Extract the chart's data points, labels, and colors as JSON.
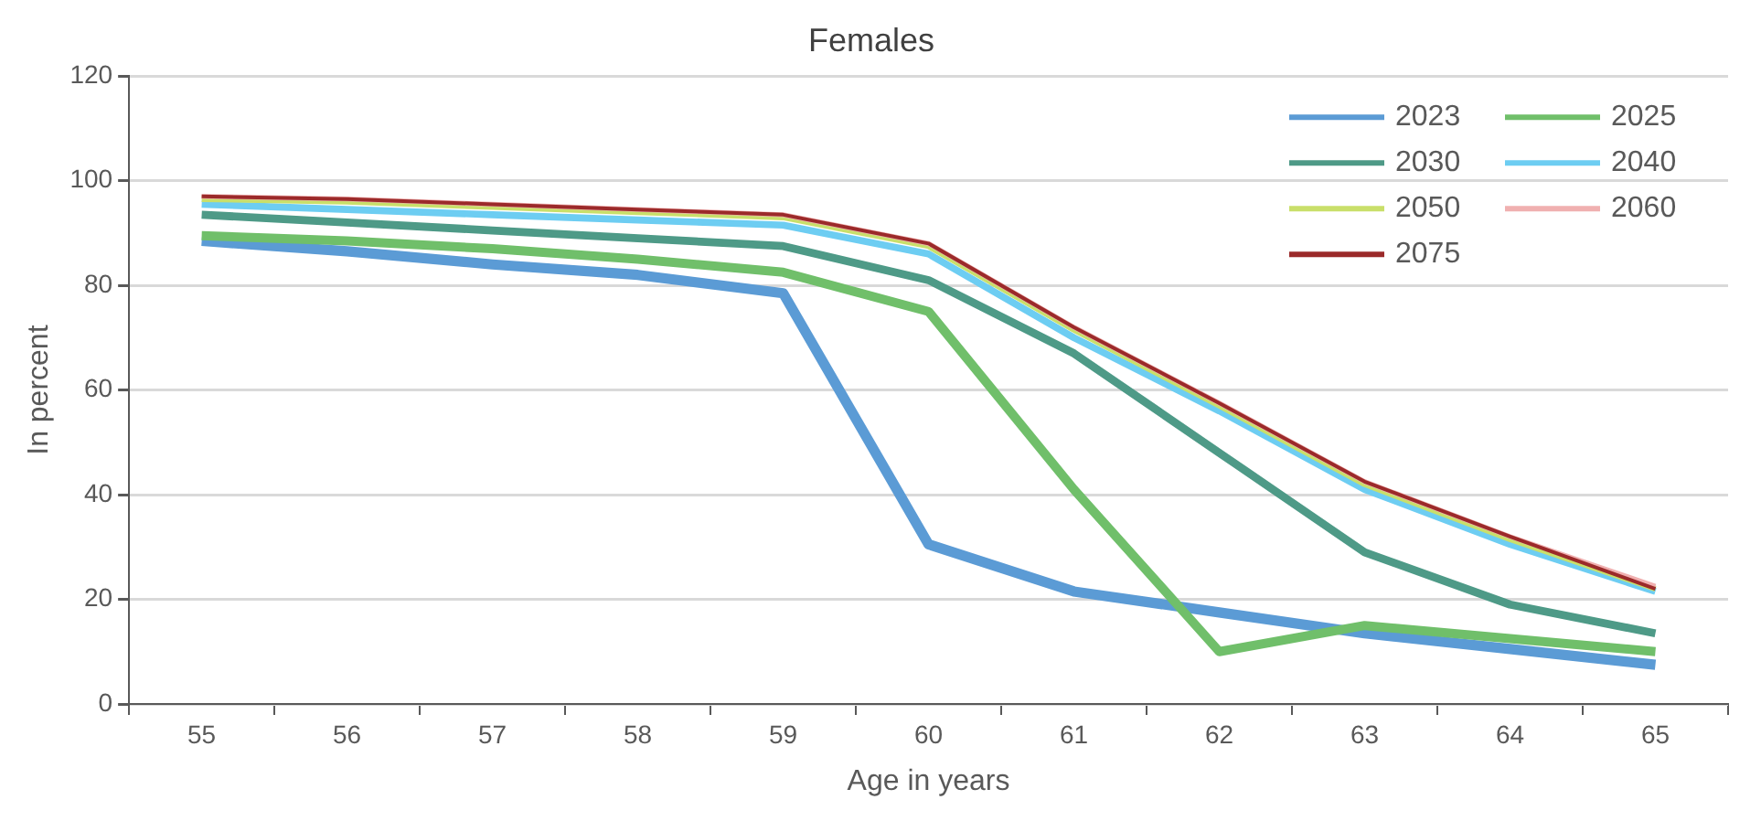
{
  "chart_data": {
    "type": "line",
    "title": "Females",
    "xlabel": "Age in years",
    "ylabel": "In percent",
    "categories": [
      "55",
      "56",
      "57",
      "58",
      "59",
      "60",
      "61",
      "62",
      "63",
      "64",
      "65"
    ],
    "series": [
      {
        "name": "2023",
        "color": "#5b9bd5",
        "values": [
          88.5,
          86.5,
          84,
          82,
          78.5,
          30.5,
          21.5,
          17.5,
          13.5,
          10.5,
          7.5
        ]
      },
      {
        "name": "2025",
        "color": "#70bf6a",
        "values": [
          89.5,
          88.5,
          87,
          85,
          82.5,
          75,
          41,
          10,
          15,
          12.5,
          10
        ]
      },
      {
        "name": "2030",
        "color": "#4e9a87",
        "values": [
          93.5,
          92,
          90.5,
          89,
          87.5,
          81,
          67,
          48,
          29,
          19,
          13.5
        ]
      },
      {
        "name": "2040",
        "color": "#6dcdf2",
        "values": [
          95.5,
          94.5,
          93.5,
          92.5,
          91.5,
          86,
          70,
          56,
          41,
          30.5,
          21.5
        ]
      },
      {
        "name": "2050",
        "color": "#c9df6a",
        "values": [
          96.5,
          96,
          95,
          94,
          93,
          87.5,
          71.5,
          57,
          42,
          31.5,
          22
        ]
      },
      {
        "name": "2060",
        "color": "#f0b0b0",
        "values": [
          97,
          96.5,
          95.5,
          94.5,
          93.5,
          88,
          72,
          57.5,
          42.5,
          32,
          22.5
        ]
      },
      {
        "name": "2075",
        "color": "#9b2a2a",
        "values": [
          97,
          96.5,
          95.5,
          94.5,
          93.5,
          88,
          72,
          57.5,
          42.5,
          32,
          22
        ]
      }
    ],
    "ylim": [
      0,
      120
    ],
    "yticks": [
      0,
      20,
      40,
      60,
      80,
      100,
      120
    ],
    "grid": "y",
    "legend": "top right",
    "marker": "none",
    "line_style": "solid"
  }
}
